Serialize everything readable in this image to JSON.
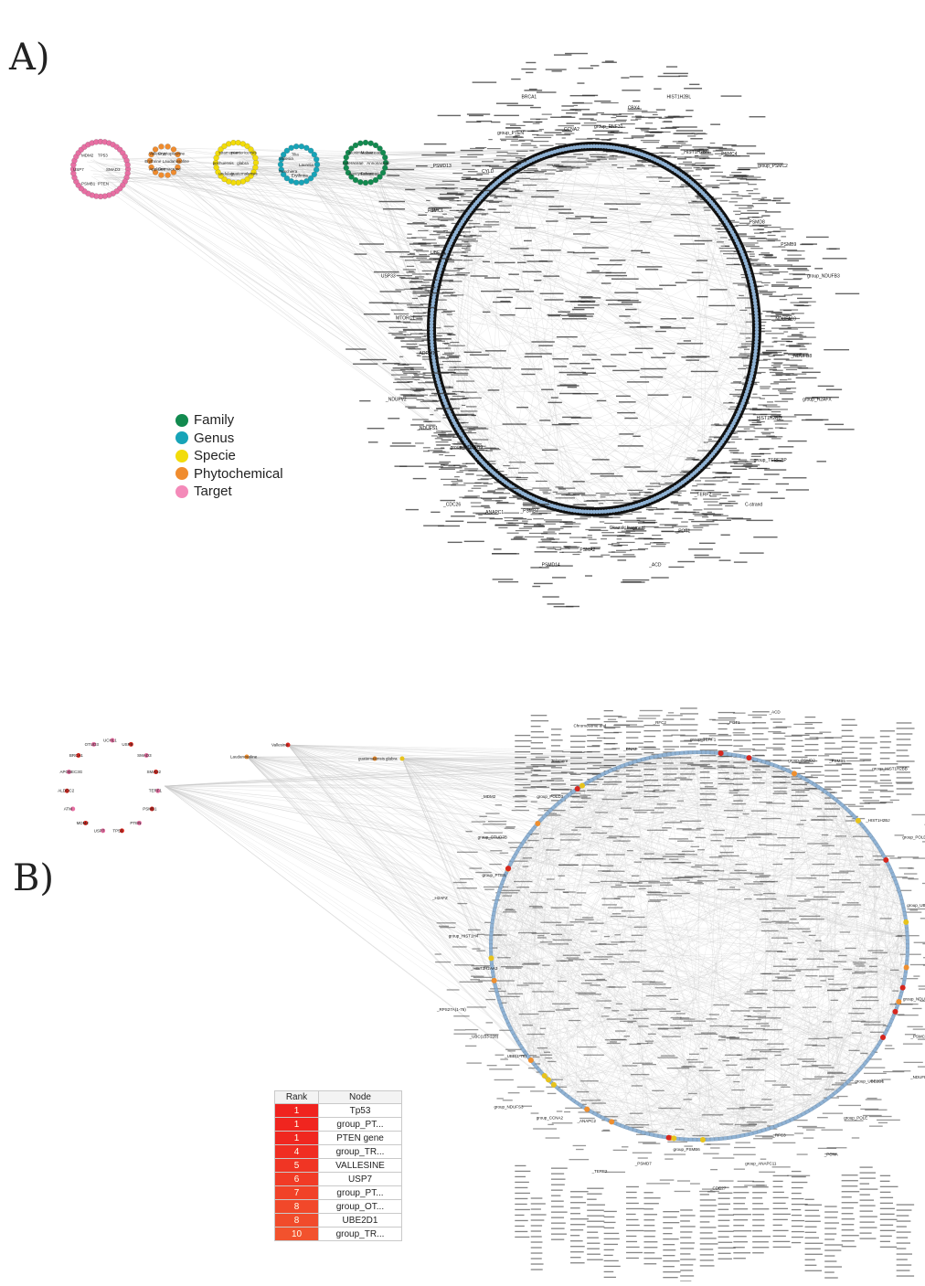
{
  "panels": {
    "a": "A)",
    "b": "B)"
  },
  "legend": [
    {
      "label": "Family",
      "color": "#128a4f"
    },
    {
      "label": "Genus",
      "color": "#17a4b8"
    },
    {
      "label": "Specie",
      "color": "#f2dc0a"
    },
    {
      "label": "Phytochemical",
      "color": "#f08c2e"
    },
    {
      "label": "Target",
      "color": "#f48ab9"
    }
  ],
  "colors": {
    "edge": "#c8c8c8",
    "node_blue": "#8fb2d4",
    "ring_dark": "#111111",
    "node_red": "#d7261e",
    "node_orange": "#ef8f2f",
    "node_gold": "#e7c31c",
    "node_pink": "#e86fa3"
  },
  "network_a": {
    "target_labels": [
      "SMAD3",
      "PTEN",
      "PSMB1",
      "USP7",
      "MDM2",
      "TP53"
    ],
    "phytochemical_labels": [
      "Laudanosoline",
      "Germacrone",
      "Appleine",
      "Erythrine",
      "Vallesine",
      "Cryptopleurine"
    ],
    "specie_labels": [
      "glabra",
      "guatemalensis",
      "undulata",
      "pechuensis",
      "stramonium",
      "puertoricensis"
    ],
    "genus_labels": [
      "Laurelia",
      "Erythrina",
      "Peschiera",
      "Vallesia",
      "Tilia"
    ],
    "family_labels": [
      "Annonaceae",
      "Fabaceae",
      "Apocynaceae",
      "Asteraceae",
      "Monimiaceae",
      "Malvaceae"
    ],
    "complex_labels": [
      "group_RNF31",
      "CBX4",
      "HIST1H2BL",
      "_HIST1H2BN",
      "_PSMC4",
      "group_PSMC2",
      "_PSMD8",
      "_PSMB9",
      "group_NDUFB3",
      "_NDUFA10",
      "_NDUFB8",
      "group_H2AFX",
      "_HIST1H2BD",
      "group_TERF2IP",
      "C-strand",
      "_TERF2",
      "_POT1",
      "_ACD",
      "Okazaki fragment",
      "_PSMA2",
      "_PSMD14",
      "_PSMB7",
      "_ANAPC1",
      "_CDC26",
      "group_NDUFB9",
      "_NDUFS1",
      "_NDUFV2",
      "_ADRM1",
      "MTORC1",
      "USP33",
      "_UBE2S",
      "_PSMC1",
      "_PSMD13",
      "CYLD",
      "group_PTEN",
      "BRCA1",
      "CCNA2"
    ]
  },
  "network_b": {
    "left_labels": [
      "UCHL1",
      "USP8",
      "SMAD3",
      "SMAD2",
      "TERF1",
      "PSMB1",
      "PTEN",
      "TP53",
      "USP7",
      "MDM2",
      "ATM",
      "ALDOC2",
      "APOBEC3G",
      "BRCA1",
      "OTUD3"
    ],
    "mid_labels": [
      "Laudanosoline",
      "Vallesine",
      "guatemalensis",
      "glabra"
    ],
    "complex_labels": [
      "group_TERF1",
      "_POT1",
      "_ACD",
      "group_PSMD2",
      "_PSMB5",
      "group_HIST1H2BB",
      "_HIST1H2BJ",
      "group_POLD1",
      "_POLD2",
      "group_UBC(77-152)",
      "group_H2AFV",
      "_ACD",
      "group_NDUFA6",
      "_PSMC3",
      "_NDUFB6",
      "group_UBE2D1",
      "group_POLE",
      "_PCNA",
      "_RFC3",
      "group_ANAPC11",
      "_CDC27",
      "group_PSMB6",
      "_PSMD7",
      "_TERF2",
      "_ANAPC2",
      "group_CCNA2",
      "group_NDUFS3",
      "_UBB(1-76)",
      "_UBC(153-228)",
      "_RPS27A(1-76)",
      "_HIST2H2AA3",
      "group_HIST1H4",
      "_H2AFZ",
      "group_PTEN",
      "group_OTUD7B",
      "_MDM2",
      "group_POLD3",
      "Telomere",
      "Chromosome end",
      "_DNA2",
      "_RFC2"
    ]
  },
  "rank_table": {
    "header_rank": "Rank",
    "header_node": "Node",
    "rows": [
      {
        "rank": "1",
        "node": "Tp53",
        "color": "#f0231f"
      },
      {
        "rank": "1",
        "node": "group_PT...",
        "color": "#f0251f"
      },
      {
        "rank": "1",
        "node": "PTEN gene",
        "color": "#f02720"
      },
      {
        "rank": "4",
        "node": "group_TR...",
        "color": "#f02e22"
      },
      {
        "rank": "5",
        "node": "VALLESINE",
        "color": "#f03524"
      },
      {
        "rank": "6",
        "node": "USP7",
        "color": "#f13b26"
      },
      {
        "rank": "7",
        "node": "group_PT...",
        "color": "#f14228"
      },
      {
        "rank": "8",
        "node": "group_OT...",
        "color": "#f1482a"
      },
      {
        "rank": "8",
        "node": "UBE2D1",
        "color": "#f14b2b"
      },
      {
        "rank": "10",
        "node": "group_TR...",
        "color": "#f2522d"
      }
    ]
  }
}
